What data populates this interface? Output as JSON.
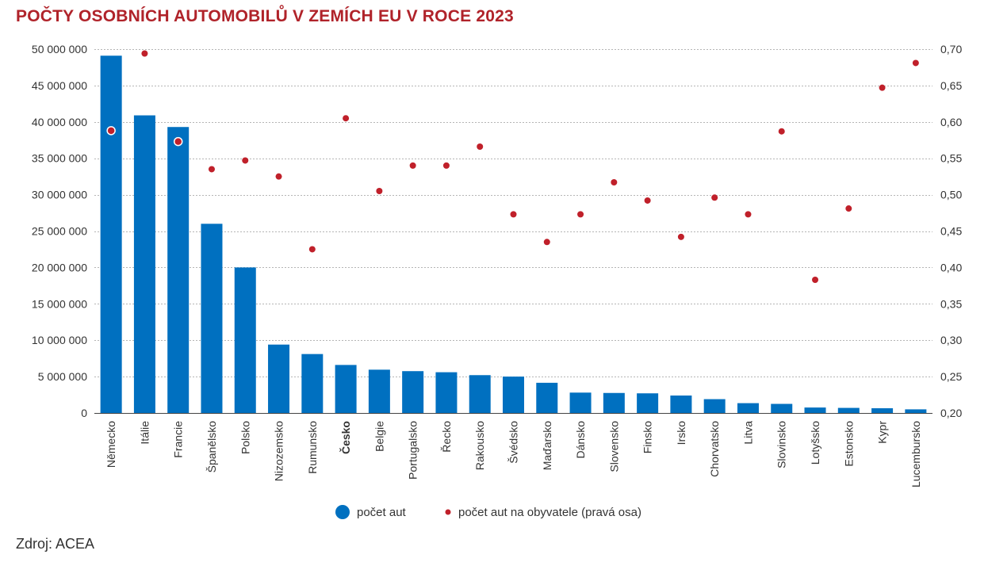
{
  "header": {
    "title": "POČTY OSOBNÍCH AUTOMOBILŮ V ZEMÍCH EU V ROCE 2023"
  },
  "footer": {
    "source": "Zdroj: ACEA"
  },
  "colors": {
    "bar": "#0070c0",
    "dot": "#c0202a",
    "title": "#b0232a",
    "grid": "#b5b5b5"
  },
  "chart_data": {
    "type": "bar",
    "title": "POČTY OSOBNÍCH AUTOMOBILŮ V ZEMÍCH EU V ROCE 2023",
    "categories": [
      "Německo",
      "Itálie",
      "Francie",
      "Španělsko",
      "Polsko",
      "Nizozemsko",
      "Rumunsko",
      "Česko",
      "Belgie",
      "Portugalsko",
      "Řecko",
      "Rakousko",
      "Švédsko",
      "Maďarsko",
      "Dánsko",
      "Slovensko",
      "Finsko",
      "Irsko",
      "Chorvatsko",
      "Litva",
      "Slovinsko",
      "Lotyšsko",
      "Estonsko",
      "Kypr",
      "Lucembursko"
    ],
    "highlight_category": "Česko",
    "series": [
      {
        "name": "počet aut",
        "kind": "bar",
        "axis": "left",
        "values": [
          49100000,
          40900000,
          39300000,
          26000000,
          20000000,
          9400000,
          8100000,
          6600000,
          5950000,
          5750000,
          5600000,
          5200000,
          5000000,
          4150000,
          2800000,
          2750000,
          2700000,
          2400000,
          1900000,
          1350000,
          1250000,
          750000,
          700000,
          650000,
          500000
        ]
      },
      {
        "name": "počet aut na obyvatele (pravá osa)",
        "kind": "scatter",
        "axis": "right",
        "values": [
          0.588,
          0.694,
          0.573,
          0.535,
          0.547,
          0.525,
          0.425,
          0.605,
          0.505,
          0.54,
          0.54,
          0.566,
          0.473,
          0.435,
          0.473,
          0.517,
          0.492,
          0.442,
          0.496,
          0.473,
          0.587,
          0.383,
          0.481,
          0.647,
          0.681
        ]
      }
    ],
    "y_left": {
      "min": 0,
      "max": 50000000,
      "step": 5000000,
      "tick_labels": [
        "0",
        "5 000 000",
        "10 000 000",
        "15 000 000",
        "20 000 000",
        "25 000 000",
        "30 000 000",
        "35 000 000",
        "40 000 000",
        "45 000 000",
        "50 000 000"
      ]
    },
    "y_right": {
      "min": 0.2,
      "max": 0.7,
      "step": 0.05,
      "tick_labels": [
        "0,20",
        "0,25",
        "0,30",
        "0,35",
        "0,40",
        "0,45",
        "0,50",
        "0,55",
        "0,60",
        "0,65",
        "0,70"
      ]
    },
    "grid": true,
    "legend": {
      "placement": "bottom-center",
      "items": [
        "počet aut",
        "počet aut na obyvatele (pravá osa)"
      ]
    }
  }
}
